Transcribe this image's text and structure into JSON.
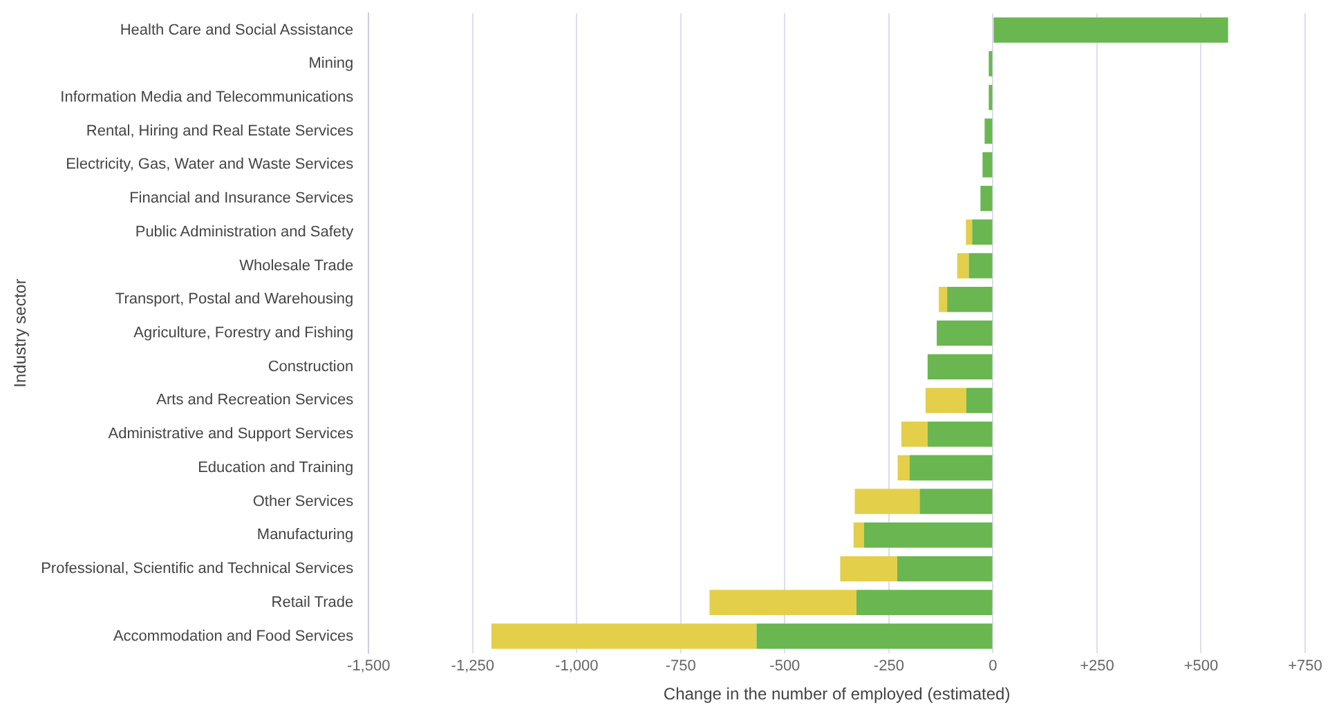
{
  "chart_data": {
    "type": "bar",
    "orientation": "horizontal",
    "stacked": true,
    "xlabel": "Change in the number of employed (estimated)",
    "ylabel": "Industry sector",
    "categories": [
      "Health Care and Social Assistance",
      "Mining",
      "Information Media and Telecommunications",
      "Rental, Hiring and Real Estate Services",
      "Electricity, Gas, Water and Waste Services",
      "Financial and Insurance Services",
      "Public Administration and Safety",
      "Wholesale Trade",
      "Transport, Postal and Warehousing",
      "Agriculture, Forestry and Fishing",
      "Construction",
      "Arts and Recreation Services",
      "Administrative and Support Services",
      "Education and Training",
      "Other Services",
      "Manufacturing",
      "Professional, Scientific and Technical Services",
      "Retail Trade",
      "Accommodation and Food Services"
    ],
    "series": [
      {
        "color": "#6ab650",
        "values": [
          565,
          -10,
          -10,
          -20,
          -25,
          -30,
          -50,
          -58,
          -110,
          -135,
          -157,
          -64,
          -157,
          -200,
          -176,
          -310,
          -230,
          -328,
          -568
        ]
      },
      {
        "color": "#e3cf4a",
        "values": [
          null,
          null,
          null,
          null,
          null,
          null,
          -15,
          -28,
          -20,
          null,
          null,
          -98,
          -63,
          -29,
          -156,
          -25,
          -137,
          -353,
          -637
        ]
      }
    ],
    "xlim": [
      -1500,
      750
    ],
    "xticks": [
      {
        "value": -1500,
        "label": "-1,500"
      },
      {
        "value": -1250,
        "label": "-1,250"
      },
      {
        "value": -1000,
        "label": "-1,000"
      },
      {
        "value": -750,
        "label": "-750"
      },
      {
        "value": -500,
        "label": "-500"
      },
      {
        "value": -250,
        "label": "-250"
      },
      0,
      {
        "value": 250,
        "label": "+250"
      },
      {
        "value": 500,
        "label": "+500"
      },
      {
        "value": 750,
        "label": "+750"
      }
    ],
    "grid": "x",
    "legend": false
  }
}
